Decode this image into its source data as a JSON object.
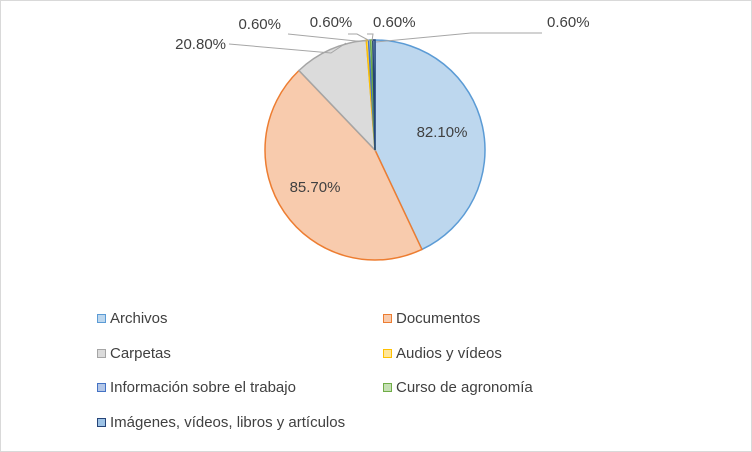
{
  "chart_data": {
    "type": "pie",
    "title": "",
    "series": [
      {
        "name": "Archivos",
        "label": "82.10%",
        "value": 82.1,
        "fill": "#bdd7ee",
        "stroke": "#5b9bd5"
      },
      {
        "name": "Documentos",
        "label": "85.70%",
        "value": 85.7,
        "fill": "#f8cbad",
        "stroke": "#ed7d31"
      },
      {
        "name": "Carpetas",
        "label": "20.80%",
        "value": 20.8,
        "fill": "#dbdbdb",
        "stroke": "#a5a5a5"
      },
      {
        "name": "Audios y vídeos",
        "label": "0.60%",
        "value": 0.6,
        "fill": "#ffe699",
        "stroke": "#ffc000"
      },
      {
        "name": "Información sobre el trabajo",
        "label": "0.60%",
        "value": 0.6,
        "fill": "#b4c7e7",
        "stroke": "#4472c4"
      },
      {
        "name": "Curso de agronomía",
        "label": "0.60%",
        "value": 0.6,
        "fill": "#c5e0b4",
        "stroke": "#70ad47"
      },
      {
        "name": "Imágenes, vídeos, libros y artículos",
        "label": "0.60%",
        "value": 0.6,
        "fill": "#9dc3e6",
        "stroke": "#264478"
      }
    ],
    "legend_position": "bottom"
  }
}
